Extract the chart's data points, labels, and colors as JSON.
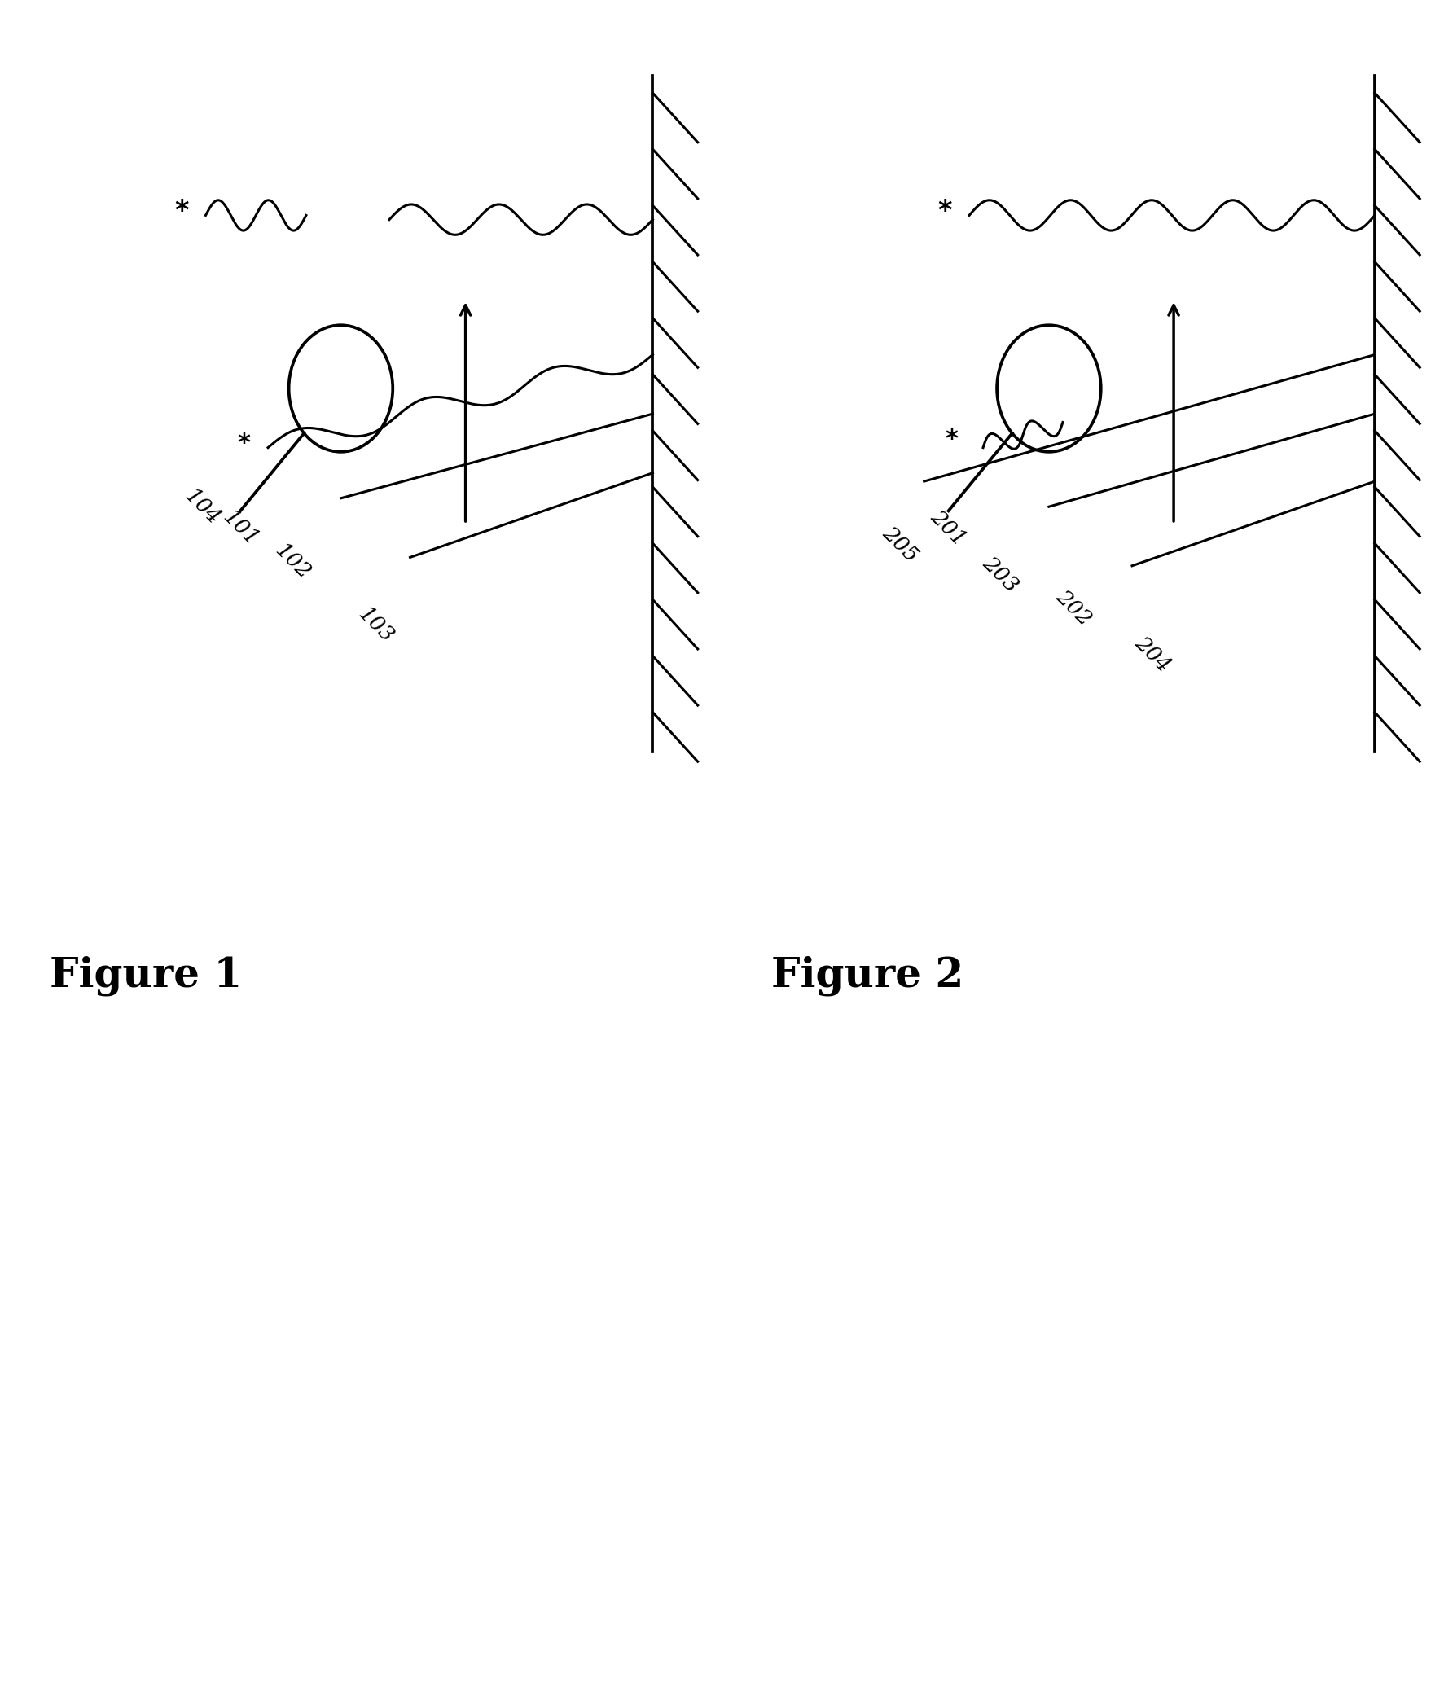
{
  "fig_width": 17.73,
  "fig_height": 20.74,
  "bg_color": "#ffffff",
  "figure1_label": "Figure 1",
  "figure2_label": "Figure 2",
  "label_fontsize": 36,
  "number_fontsize": 19,
  "lw": 2.2
}
